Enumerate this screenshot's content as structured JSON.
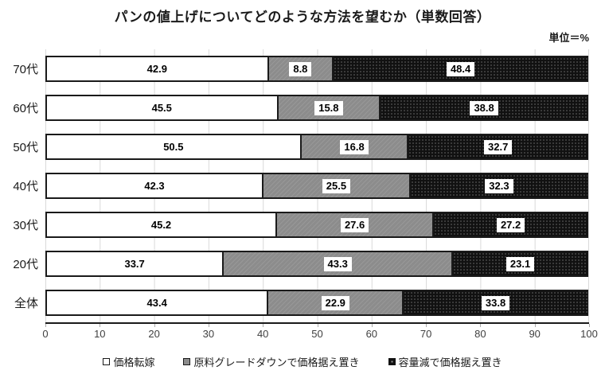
{
  "title": "パンの値上げについてどのような方法を望むか（単数回答）",
  "unit_label": "単位＝%",
  "colors": {
    "series_1": "#ffffff",
    "series_2": "#8c8c8c",
    "series_3": "#111111",
    "gridline": "#d9d9d9",
    "axis_line": "#1a1a1a"
  },
  "chart_data": {
    "type": "bar",
    "orientation": "horizontal",
    "stacked": true,
    "title": "パンの値上げについてどのような方法を望むか（単数回答）",
    "unit": "単位＝%",
    "categories": [
      "70代",
      "60代",
      "50代",
      "40代",
      "30代",
      "20代",
      "全体"
    ],
    "series": [
      {
        "name": "価格転嫁",
        "color": "#ffffff",
        "values": [
          42.9,
          45.5,
          50.5,
          42.3,
          45.2,
          33.7,
          43.4
        ]
      },
      {
        "name": "原料グレードダウンで価格据え置き",
        "color": "#8c8c8c",
        "values": [
          8.8,
          15.8,
          16.8,
          25.5,
          27.6,
          43.3,
          22.9
        ]
      },
      {
        "name": "容量減で価格据え置き",
        "color": "#111111",
        "values": [
          48.4,
          38.8,
          32.7,
          32.3,
          27.2,
          23.1,
          33.8
        ]
      }
    ],
    "xlim": [
      0,
      100
    ],
    "x_ticks": [
      0,
      10,
      20,
      30,
      40,
      50,
      60,
      70,
      80,
      90,
      100
    ],
    "grid": true,
    "legend_position": "bottom"
  }
}
